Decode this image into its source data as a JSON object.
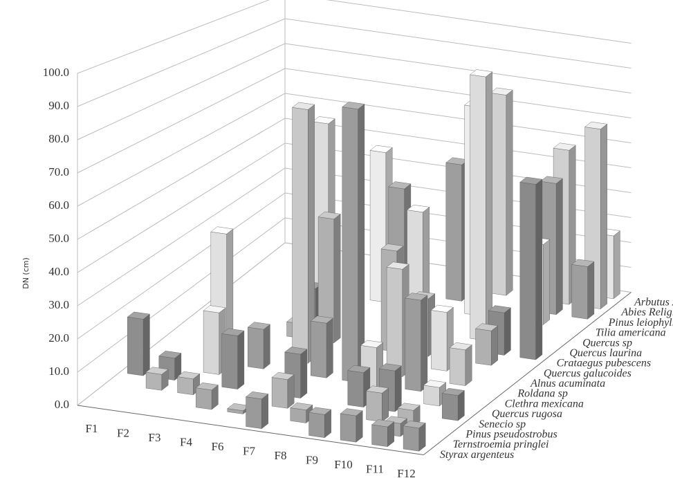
{
  "chart_data": {
    "type": "bar3d",
    "y_label": "DN (cm)",
    "categories": [
      "F1",
      "F2",
      "F3",
      "F4",
      "F6",
      "F7",
      "F8",
      "F9",
      "F10",
      "F11",
      "F12"
    ],
    "ylim": [
      0,
      100
    ],
    "yticks": [
      {
        "value": 0,
        "label": "0.0"
      },
      {
        "value": 10,
        "label": "10.0"
      },
      {
        "value": 20,
        "label": "20.0"
      },
      {
        "value": 30,
        "label": "30.0"
      },
      {
        "value": 40,
        "label": "40.0"
      },
      {
        "value": 50,
        "label": "50.0"
      },
      {
        "value": 60,
        "label": "60.0"
      },
      {
        "value": 70,
        "label": "70.0"
      },
      {
        "value": 80,
        "label": "80.0"
      },
      {
        "value": 90,
        "label": "90.0"
      },
      {
        "value": 100,
        "label": "100.0"
      }
    ],
    "grid": true,
    "series": [
      {
        "name": "Styrax argenteus",
        "color": "#9a9a9a",
        "values": [
          null,
          null,
          null,
          null,
          null,
          9,
          null,
          7,
          8,
          6,
          7
        ]
      },
      {
        "name": "Ternstroemia pringlei",
        "color": "#a8a8a8",
        "values": [
          null,
          null,
          null,
          6,
          1,
          null,
          4,
          null,
          null,
          4,
          null
        ]
      },
      {
        "name": "Pinus pseudostrobus",
        "color": "#b4b4b4",
        "values": [
          null,
          5,
          5,
          null,
          null,
          9,
          null,
          null,
          9,
          5,
          null
        ]
      },
      {
        "name": "Senecio sp",
        "color": "#8e8e8e",
        "values": [
          18,
          7,
          null,
          17,
          null,
          14,
          null,
          11,
          13,
          null,
          8
        ]
      },
      {
        "name": "Quercus rugosa",
        "color": "#d6d6d6",
        "values": [
          null,
          null,
          20,
          null,
          null,
          null,
          null,
          16,
          null,
          6,
          null
        ]
      },
      {
        "name": "Clethra mexicana",
        "color": "#9c9c9c",
        "values": [
          null,
          null,
          null,
          13,
          null,
          18,
          90,
          null,
          30,
          null,
          null
        ]
      },
      {
        "name": "Roldana sp",
        "color": "#c8c8c8",
        "values": [
          null,
          null,
          null,
          null,
          85,
          null,
          null,
          36,
          null,
          12,
          null
        ]
      },
      {
        "name": "Alnus acuminata",
        "color": "#e0e0e0",
        "values": [
          null,
          36,
          null,
          null,
          4,
          null,
          null,
          null,
          20,
          null,
          null
        ]
      },
      {
        "name": "Quercus galucoides",
        "color": "#b0b0b0",
        "values": [
          null,
          null,
          null,
          5,
          43,
          null,
          35,
          20,
          null,
          12,
          null
        ]
      },
      {
        "name": "Crataegus pubescens",
        "color": "#8a8a8a",
        "values": [
          null,
          null,
          null,
          14,
          null,
          null,
          null,
          null,
          null,
          15,
          62
        ]
      },
      {
        "name": "Quercus laurina",
        "color": "#dcdcdc",
        "values": [
          null,
          null,
          null,
          70,
          null,
          null,
          43,
          null,
          95,
          null,
          null
        ]
      },
      {
        "name": "Quercus sp",
        "color": "#a0a0a0",
        "values": [
          null,
          null,
          null,
          null,
          null,
          47,
          null,
          null,
          null,
          null,
          null
        ]
      },
      {
        "name": "Tilia americana",
        "color": "#ececec",
        "values": [
          null,
          null,
          null,
          null,
          56,
          null,
          null,
          78,
          null,
          30,
          null
        ]
      },
      {
        "name": "Pinus leiophylla",
        "color": "#9e9e9e",
        "values": [
          null,
          null,
          null,
          null,
          null,
          null,
          52,
          null,
          null,
          50,
          20
        ]
      },
      {
        "name": "Abies Religiosa",
        "color": "#d0d0d0",
        "values": [
          null,
          null,
          null,
          null,
          null,
          null,
          null,
          78,
          null,
          60,
          70
        ]
      },
      {
        "name": "Arbutus xalapensis",
        "color": "#e6e6e6",
        "values": [
          null,
          null,
          null,
          null,
          null,
          null,
          null,
          null,
          null,
          null,
          25
        ]
      }
    ]
  }
}
